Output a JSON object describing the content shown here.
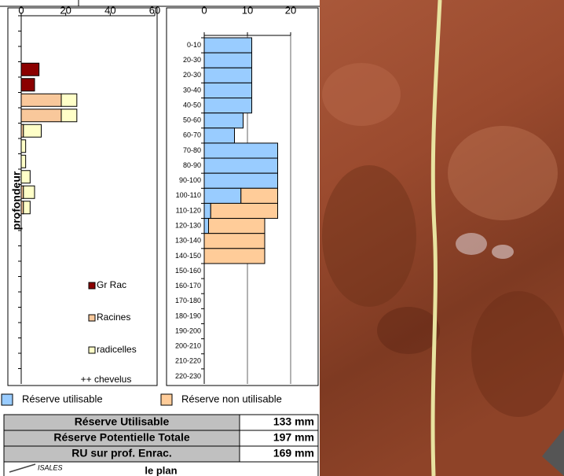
{
  "chart_data": [
    {
      "type": "hbar-stacked",
      "ylabel": "profondeur",
      "annotation": "++ chevelus",
      "categories": [
        null,
        null,
        null,
        null,
        null,
        null,
        null,
        null,
        null,
        null,
        null,
        null,
        null,
        null,
        null,
        null,
        null,
        null,
        null,
        null,
        null,
        null,
        null,
        null
      ],
      "series": [
        {
          "name": "Gr Rac",
          "color": "#8b0000",
          "values": [
            0,
            0,
            0,
            8,
            6,
            0,
            0,
            0,
            0,
            0,
            0,
            0,
            0,
            0,
            0,
            0,
            0,
            0,
            0,
            0,
            0,
            0,
            0,
            0
          ]
        },
        {
          "name": "Racines",
          "color": "#f9c89b",
          "values": [
            0,
            0,
            0,
            0,
            0,
            18,
            18,
            1,
            0,
            0,
            0,
            1,
            1,
            0,
            0,
            0,
            0,
            0,
            0,
            0,
            0,
            0,
            0,
            0
          ]
        },
        {
          "name": "radicelles",
          "color": "#ffffc8",
          "values": [
            0,
            0,
            0,
            0,
            0,
            7,
            7,
            8,
            2,
            2,
            4,
            5,
            3,
            0,
            0,
            0,
            0,
            0,
            0,
            0,
            0,
            0,
            0,
            0
          ]
        }
      ],
      "xlim": [
        0,
        60
      ],
      "xticks": [
        0,
        20,
        40,
        60
      ],
      "grid": false,
      "legend": "lower right"
    },
    {
      "type": "hbar-stacked",
      "categories": [
        "0-10",
        "20-30",
        "20-30",
        "30-40",
        "40-50",
        "50-60",
        "60-70",
        "70-80",
        "80-90",
        "90-100",
        "100-110",
        "110-120",
        "120-130",
        "130-140",
        "140-150",
        "150-160",
        "160-170",
        "170-180",
        "180-190",
        "190-200",
        "200-210",
        "210-220",
        "220-230"
      ],
      "series": [
        {
          "name": "Réserve utilisable",
          "color": "#99ccff",
          "values": [
            11,
            11,
            11,
            11,
            11,
            9,
            7,
            17,
            17,
            17,
            8.5,
            1.5,
            1,
            0,
            0,
            0,
            0,
            0,
            0,
            0,
            0,
            0,
            0
          ]
        },
        {
          "name": "Réserve non utilisable",
          "color": "#ffcc99",
          "values": [
            0,
            0,
            0,
            0,
            0,
            0,
            0,
            0,
            0,
            0,
            8.5,
            15.5,
            13,
            14,
            14,
            0,
            0,
            0,
            0,
            0,
            0,
            0,
            0
          ]
        }
      ],
      "xlim": [
        0,
        20
      ],
      "xticks": [
        0,
        10,
        20
      ],
      "grid": true,
      "legend": "bottom"
    }
  ],
  "table": {
    "rows": [
      [
        "Réserve Utilisable",
        "133 mm"
      ],
      [
        "Réserve Potentielle Totale",
        "197 mm"
      ],
      [
        "RU sur prof. Enrac.",
        "169 mm"
      ]
    ]
  },
  "footer": {
    "logo": "ISALES",
    "text": "le plan"
  }
}
